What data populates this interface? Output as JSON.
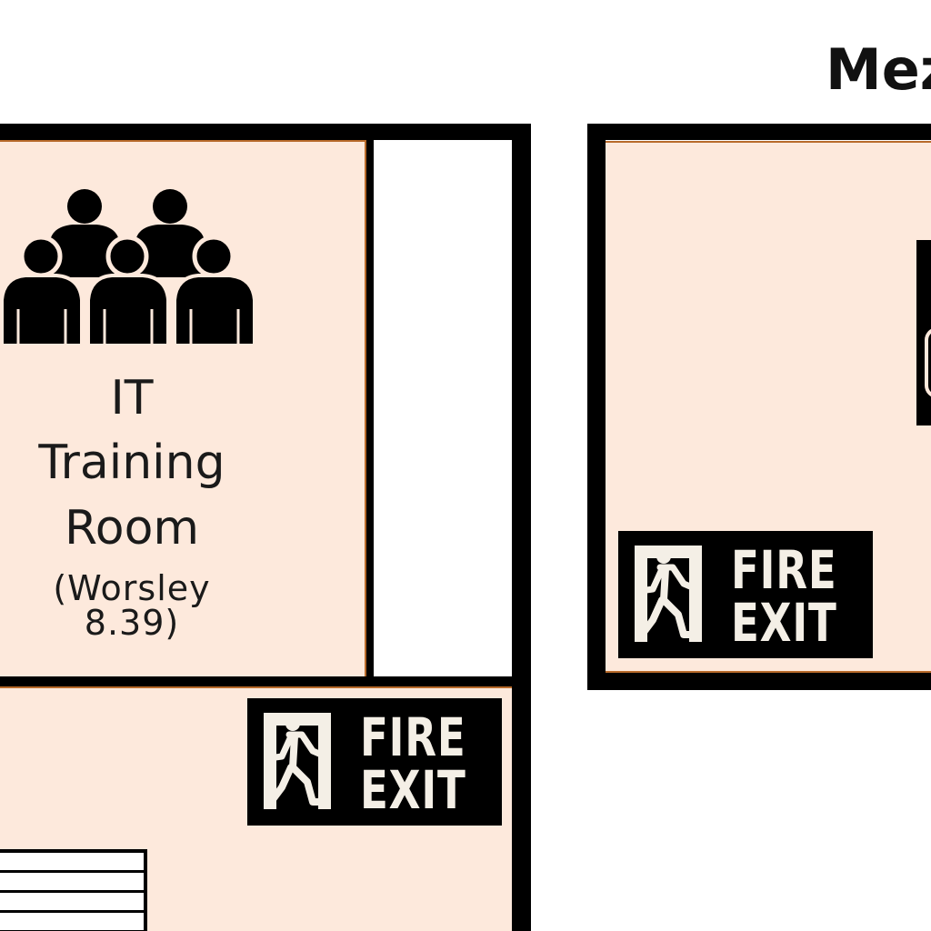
{
  "floor_heading": "Mez",
  "rooms": {
    "it_training": {
      "label_line1": "IT",
      "label_line2": "Training",
      "label_line3": "Room",
      "room_code": "(Worsley 8.39)",
      "icon": "group-of-people-icon"
    }
  },
  "fire_exit_signs": [
    {
      "line1": "FIRE",
      "line2": "EXIT",
      "icon": "running-man-door-icon"
    },
    {
      "line1": "FIRE",
      "line2": "EXIT",
      "icon": "running-man-door-icon"
    }
  ],
  "colors": {
    "room_fill": "#fde9dc",
    "room_edge": "#b86a2a",
    "wall": "#000000",
    "corridor": "#ffffff",
    "sign_text": "#f4efe6"
  }
}
